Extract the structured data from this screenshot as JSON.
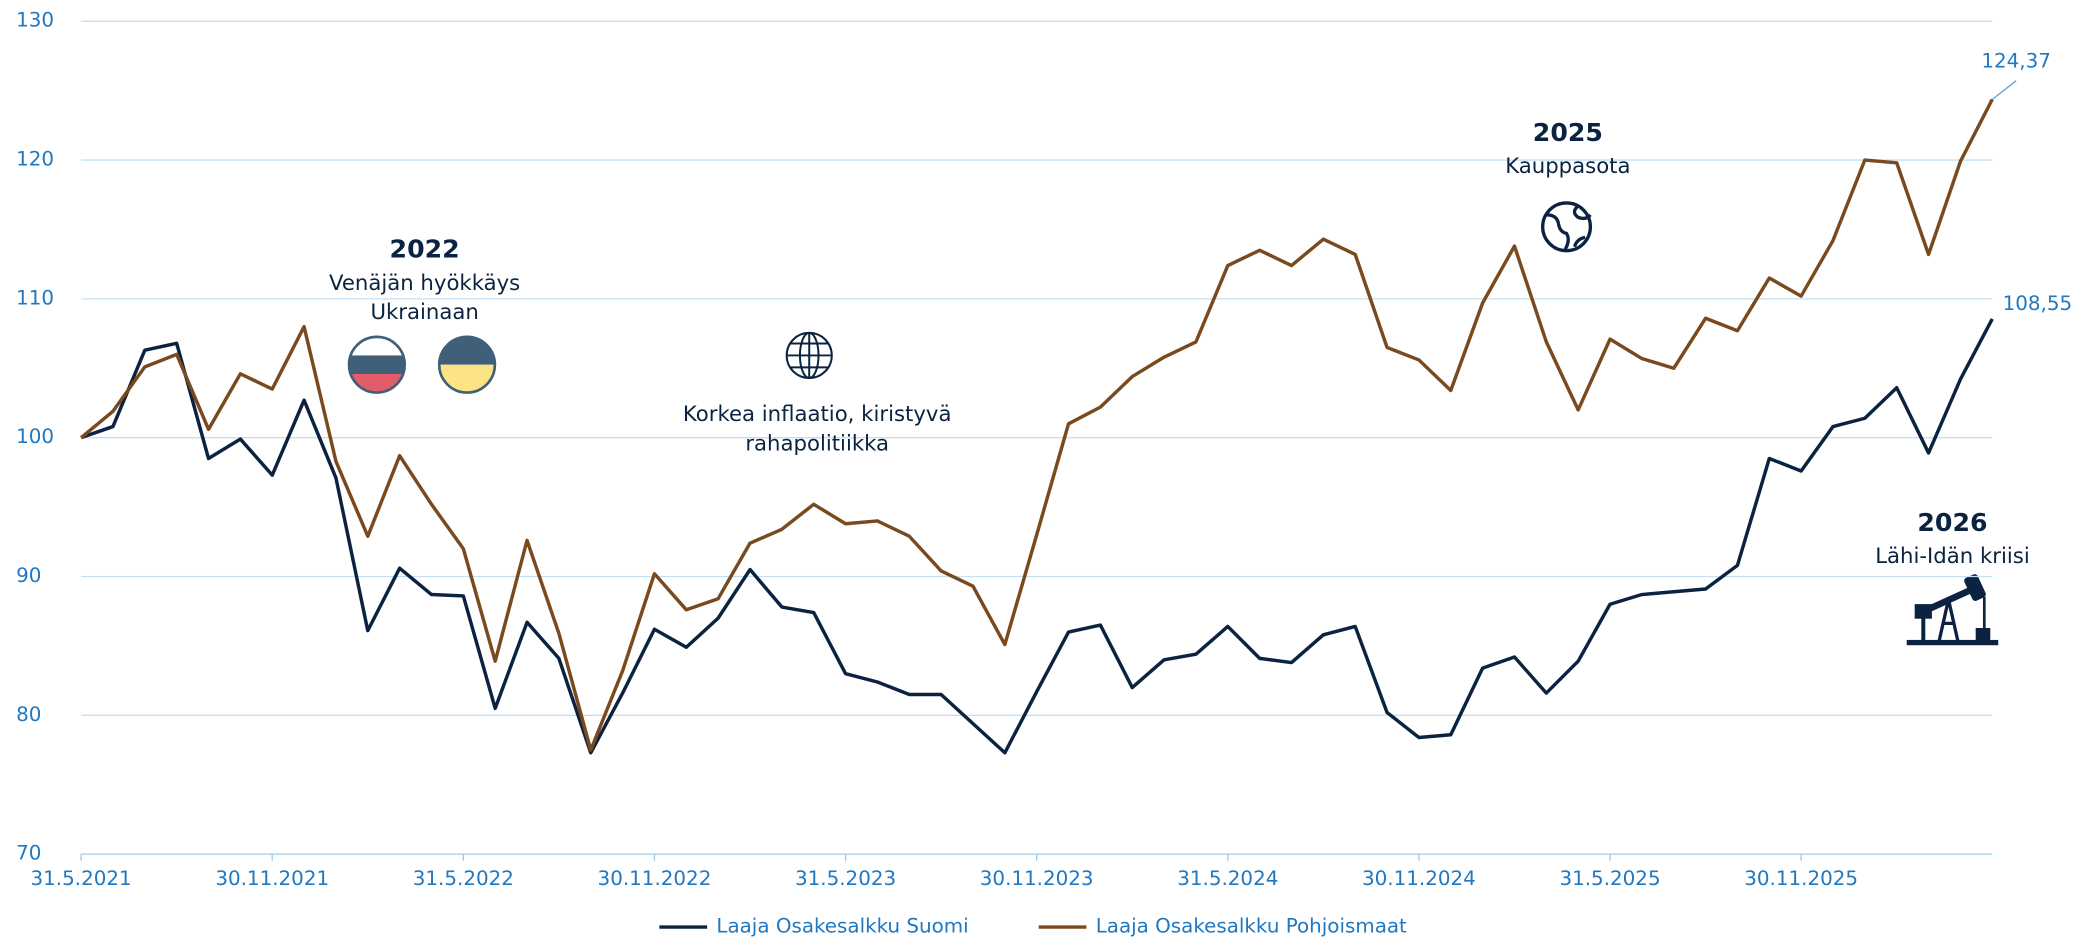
{
  "chart_data": {
    "type": "line",
    "categories": [
      "31.5.2021",
      null,
      null,
      null,
      null,
      null,
      "30.11.2021",
      null,
      null,
      null,
      null,
      null,
      "31.5.2022",
      null,
      null,
      null,
      null,
      null,
      "30.11.2022",
      null,
      null,
      null,
      null,
      null,
      "31.5.2023",
      null,
      null,
      null,
      null,
      null,
      "30.11.2023",
      null,
      null,
      null,
      null,
      null,
      "31.5.2024",
      null,
      null,
      null,
      null,
      null,
      "30.11.2024",
      null,
      null,
      null,
      null,
      null,
      "31.5.2025",
      null,
      null,
      null,
      null,
      null,
      "30.11.2025",
      null,
      null,
      null,
      null,
      null,
      null
    ],
    "series": [
      {
        "name": "Laaja Osakesalkku Suomi",
        "color": "#0b2341",
        "values": [
          100,
          100.8,
          106.3,
          106.8,
          98.5,
          99.9,
          97.3,
          102.7,
          97.1,
          86.1,
          90.6,
          88.7,
          88.6,
          80.5,
          86.7,
          84.1,
          77.3,
          81.6,
          86.2,
          84.9,
          87.0,
          90.5,
          87.8,
          87.4,
          83.0,
          82.4,
          81.5,
          81.5,
          79.4,
          77.3,
          81.7,
          86.0,
          86.5,
          82.0,
          84.0,
          84.4,
          86.4,
          84.1,
          83.8,
          85.8,
          86.4,
          80.2,
          78.4,
          78.6,
          83.4,
          84.2,
          81.6,
          83.9,
          88.0,
          88.7,
          88.9,
          89.1,
          90.8,
          98.5,
          97.6,
          100.8,
          101.4,
          103.6,
          98.9,
          104.2,
          108.55
        ],
        "value_labels": [
          null,
          null,
          null,
          null,
          null,
          null,
          null,
          null,
          null,
          null,
          null,
          null,
          null,
          null,
          null,
          null,
          null,
          null,
          null,
          null,
          null,
          null,
          null,
          null,
          null,
          null,
          null,
          null,
          null,
          null,
          null,
          null,
          null,
          null,
          null,
          null,
          null,
          null,
          null,
          null,
          null,
          null,
          null,
          null,
          null,
          null,
          null,
          null,
          null,
          null,
          null,
          null,
          null,
          null,
          null,
          null,
          null,
          null,
          null,
          null,
          "108,55"
        ]
      },
      {
        "name": "Laaja Osakesalkku Pohjoismaat",
        "color": "#7a4a1e",
        "values": [
          100,
          101.9,
          105.1,
          106.0,
          100.6,
          104.6,
          103.5,
          108.0,
          98.3,
          92.9,
          98.7,
          95.2,
          92.0,
          83.9,
          92.6,
          85.9,
          77.5,
          83.2,
          90.2,
          87.6,
          88.4,
          92.4,
          93.4,
          95.2,
          93.8,
          94.0,
          92.9,
          90.4,
          89.3,
          85.1,
          93.0,
          101.0,
          102.2,
          104.4,
          105.8,
          106.9,
          112.4,
          113.5,
          112.4,
          114.3,
          113.2,
          106.5,
          105.6,
          103.4,
          109.7,
          113.8,
          106.9,
          102.0,
          107.1,
          105.7,
          105.0,
          108.6,
          107.7,
          111.5,
          110.2,
          114.2,
          120.0,
          119.8,
          113.2,
          119.9,
          124.37
        ],
        "value_labels": [
          null,
          null,
          null,
          null,
          null,
          null,
          null,
          null,
          null,
          null,
          null,
          null,
          null,
          null,
          null,
          null,
          null,
          null,
          null,
          null,
          null,
          null,
          null,
          null,
          null,
          null,
          null,
          null,
          null,
          null,
          null,
          null,
          null,
          null,
          null,
          null,
          null,
          null,
          null,
          null,
          null,
          null,
          null,
          null,
          null,
          null,
          null,
          null,
          null,
          null,
          null,
          null,
          null,
          null,
          null,
          null,
          null,
          null,
          null,
          null,
          "124,37"
        ]
      }
    ],
    "ylim": [
      70,
      130
    ],
    "yticks": [
      70,
      80,
      90,
      100,
      110,
      120,
      130
    ],
    "grid": true,
    "legend": "bottom",
    "annotations": [
      {
        "year": "2022",
        "lines": [
          "Venäjän hyökkäys",
          "Ukrainaan"
        ]
      },
      {
        "lines": [
          "Korkea inflaatio, kiristyvä",
          "rahapolitiikka"
        ]
      },
      {
        "year": "2025",
        "lines": [
          "Kauppasota"
        ]
      },
      {
        "year": "2026",
        "lines": [
          "Lähi-Idän kriisi"
        ]
      }
    ]
  }
}
